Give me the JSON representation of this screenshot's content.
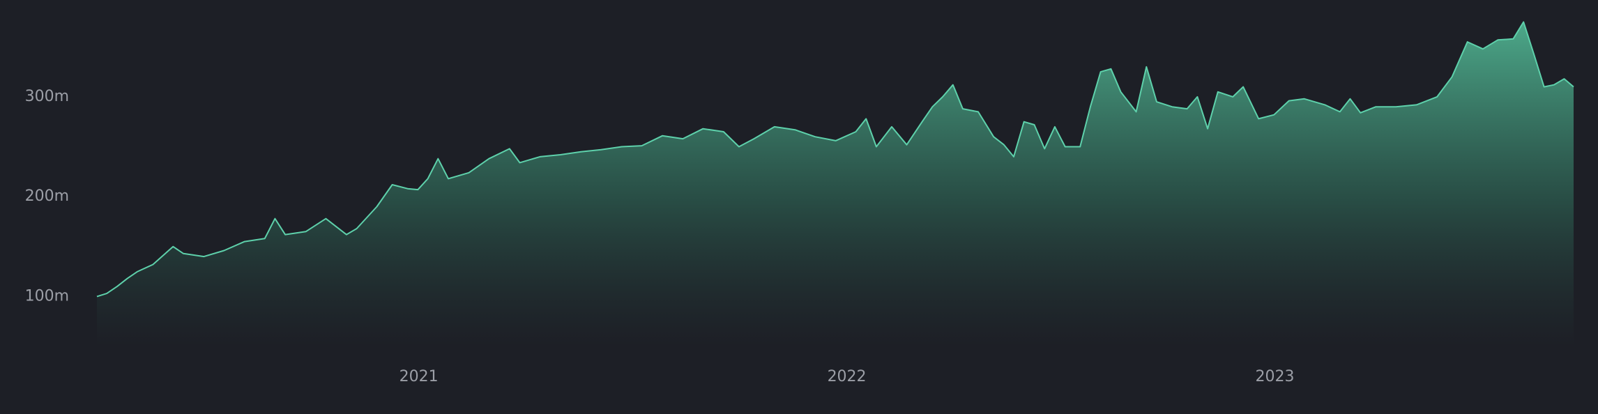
{
  "chart_data": {
    "type": "area",
    "color": "#5ed1ab",
    "grid": false,
    "xlim": [
      2020.248,
      2023.698
    ],
    "xticks": [
      2021,
      2022,
      2023
    ],
    "ylim": [
      50000000,
      390000000
    ],
    "yticks": [
      {
        "value": 100000000,
        "label": "100m"
      },
      {
        "value": 200000000,
        "label": "200m"
      },
      {
        "value": 300000000,
        "label": "300m"
      }
    ],
    "x": [
      2020.248,
      2020.271,
      2020.295,
      2020.319,
      2020.343,
      2020.379,
      2020.426,
      2020.45,
      2020.498,
      2020.545,
      2020.593,
      2020.64,
      2020.664,
      2020.688,
      2020.736,
      2020.783,
      2020.831,
      2020.855,
      2020.902,
      2020.938,
      2020.974,
      2020.998,
      2021.021,
      2021.045,
      2021.069,
      2021.117,
      2021.164,
      2021.212,
      2021.236,
      2021.283,
      2021.331,
      2021.379,
      2021.426,
      2021.474,
      2021.521,
      2021.569,
      2021.617,
      2021.664,
      2021.712,
      2021.748,
      2021.783,
      2021.831,
      2021.879,
      2021.926,
      2021.974,
      2022.021,
      2022.045,
      2022.069,
      2022.105,
      2022.14,
      2022.176,
      2022.2,
      2022.224,
      2022.248,
      2022.271,
      2022.307,
      2022.343,
      2022.367,
      2022.39,
      2022.414,
      2022.438,
      2022.462,
      2022.486,
      2022.51,
      2022.545,
      2022.569,
      2022.593,
      2022.617,
      2022.64,
      2022.676,
      2022.7,
      2022.724,
      2022.76,
      2022.795,
      2022.819,
      2022.843,
      2022.867,
      2022.902,
      2022.926,
      2022.962,
      2022.998,
      2023.033,
      2023.069,
      2023.117,
      2023.152,
      2023.176,
      2023.2,
      2023.236,
      2023.283,
      2023.331,
      2023.379,
      2023.414,
      2023.45,
      2023.486,
      2023.521,
      2023.557,
      2023.581,
      2023.605,
      2023.629,
      2023.652,
      2023.676,
      2023.698
    ],
    "values": [
      100000000,
      103000000,
      110000000,
      118000000,
      125000000,
      132000000,
      150000000,
      143000000,
      140000000,
      146000000,
      155000000,
      158000000,
      178000000,
      162000000,
      165000000,
      178000000,
      162000000,
      168000000,
      190000000,
      212000000,
      208000000,
      207000000,
      218000000,
      238000000,
      218000000,
      224000000,
      238000000,
      248000000,
      234000000,
      240000000,
      242000000,
      245000000,
      247000000,
      250000000,
      251000000,
      261000000,
      258000000,
      268000000,
      265000000,
      250000000,
      258000000,
      270000000,
      267000000,
      260000000,
      256000000,
      265000000,
      278000000,
      250000000,
      270000000,
      252000000,
      275000000,
      290000000,
      300000000,
      312000000,
      288000000,
      285000000,
      260000000,
      252000000,
      240000000,
      275000000,
      272000000,
      248000000,
      270000000,
      250000000,
      250000000,
      290000000,
      325000000,
      328000000,
      305000000,
      285000000,
      330000000,
      295000000,
      290000000,
      288000000,
      300000000,
      268000000,
      305000000,
      300000000,
      310000000,
      278000000,
      282000000,
      296000000,
      298000000,
      292000000,
      285000000,
      298000000,
      284000000,
      290000000,
      290000000,
      292000000,
      300000000,
      320000000,
      355000000,
      348000000,
      357000000,
      358000000,
      375000000,
      343000000,
      310000000,
      312000000,
      318000000,
      310000000
    ]
  }
}
